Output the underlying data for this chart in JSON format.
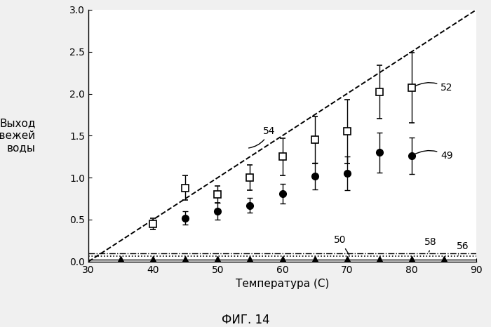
{
  "title": "ФИГ. 14",
  "xlabel": "Температура (С)",
  "ylabel": "Выход\nсвежей\nводы",
  "xlim": [
    30,
    90
  ],
  "ylim": [
    0.0,
    3.0
  ],
  "xticks": [
    30,
    40,
    50,
    60,
    70,
    80,
    90
  ],
  "yticks": [
    0.0,
    0.5,
    1.0,
    1.5,
    2.0,
    2.5,
    3.0
  ],
  "series52_x": [
    40,
    45,
    50,
    55,
    60,
    65,
    70,
    75,
    80
  ],
  "series52_y": [
    0.45,
    0.88,
    0.8,
    1.0,
    1.25,
    1.45,
    1.55,
    2.02,
    2.07
  ],
  "series52_yerr": [
    0.07,
    0.15,
    0.1,
    0.15,
    0.22,
    0.28,
    0.38,
    0.32,
    0.42
  ],
  "series49_x": [
    45,
    50,
    55,
    60,
    65,
    70,
    75,
    80
  ],
  "series49_y": [
    0.52,
    0.6,
    0.67,
    0.81,
    1.02,
    1.05,
    1.3,
    1.26
  ],
  "series49_yerr": [
    0.08,
    0.1,
    0.09,
    0.12,
    0.16,
    0.2,
    0.24,
    0.22
  ],
  "series50_x": [
    35,
    40,
    45,
    50,
    55,
    60,
    65,
    70,
    75,
    80,
    85
  ],
  "series50_y": [
    0.03,
    0.03,
    0.03,
    0.03,
    0.03,
    0.03,
    0.03,
    0.03,
    0.03,
    0.03,
    0.03
  ],
  "dashed_line_x": [
    30,
    90
  ],
  "dashed_line_y": [
    0.0,
    3.0
  ],
  "line58_y": 0.095,
  "line56_y": 0.065,
  "line_solid_y": 0.02,
  "bg_color": "#f0f0f0",
  "plot_bg_color": "#ffffff"
}
